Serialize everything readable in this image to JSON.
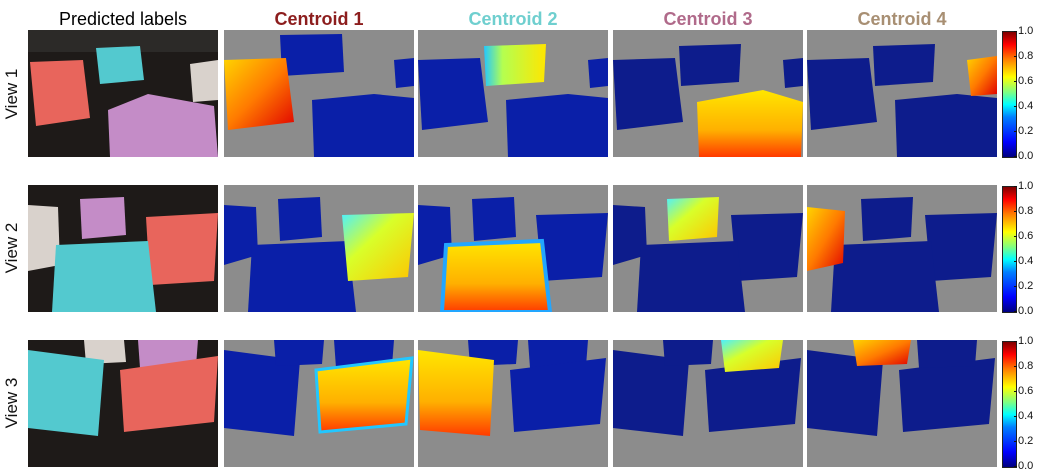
{
  "columns": [
    {
      "label": "Predicted labels",
      "color": "#111111"
    },
    {
      "label": "Centroid 1",
      "color": "#8c1d1d"
    },
    {
      "label": "Centroid 2",
      "color": "#6fcfcf"
    },
    {
      "label": "Centroid 3",
      "color": "#b06a8a"
    },
    {
      "label": "Centroid 4",
      "color": "#a88f73"
    }
  ],
  "rows": [
    {
      "label": "View 1"
    },
    {
      "label": "View 2"
    },
    {
      "label": "View 3"
    }
  ],
  "colorbar": {
    "ticks": [
      "1.0",
      "0.8",
      "0.6",
      "0.4",
      "0.2",
      "0.0"
    ],
    "colormap": "jet",
    "range": [
      0.0,
      1.0
    ]
  },
  "colors": {
    "background_gray": "#8c8c8c",
    "low_blue": "#0a1fa8",
    "deep_blue": "#0d1c8c",
    "chair_red": "#e8655c",
    "chair_cyan": "#53c9cf",
    "chair_purple": "#c48cc7",
    "chair_white": "#d9d2cc",
    "floor_dark": "#1e1a18"
  }
}
